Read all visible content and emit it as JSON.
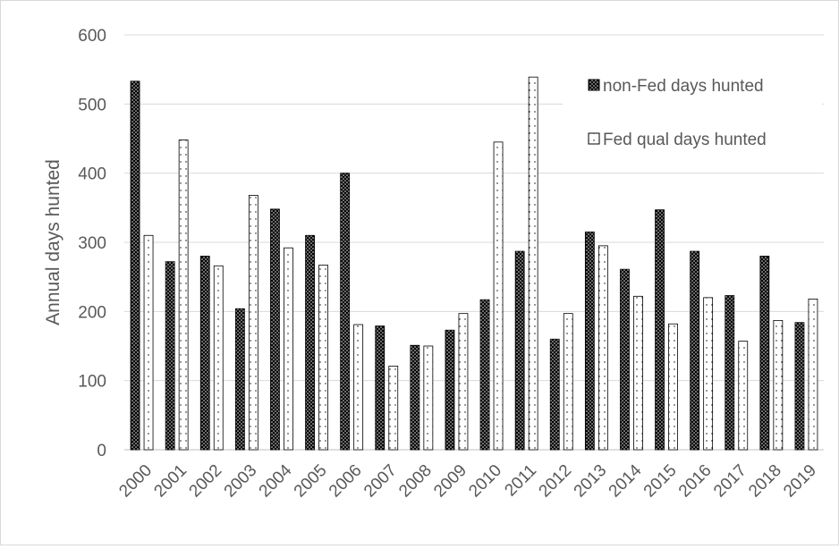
{
  "chart_data": {
    "type": "bar",
    "title": "",
    "xlabel": "",
    "ylabel": "Annual days hunted",
    "ylim": [
      0,
      600
    ],
    "yticks": [
      0,
      100,
      200,
      300,
      400,
      500,
      600
    ],
    "grid": true,
    "legend_position": "top-right",
    "categories": [
      "2000",
      "2001",
      "2002",
      "2003",
      "2004",
      "2005",
      "2006",
      "2007",
      "2008",
      "2009",
      "2010",
      "2011",
      "2012",
      "2013",
      "2014",
      "2015",
      "2016",
      "2017",
      "2018",
      "2019"
    ],
    "series": [
      {
        "name": "non-Fed days hunted",
        "pattern": "dark-dotted",
        "color": "#000000",
        "values": [
          533,
          272,
          280,
          204,
          348,
          310,
          400,
          179,
          151,
          173,
          217,
          287,
          160,
          315,
          261,
          347,
          287,
          223,
          280,
          184
        ]
      },
      {
        "name": "Fed qual days hunted",
        "pattern": "light-dotted",
        "color": "#ffffff",
        "values": [
          310,
          448,
          266,
          368,
          292,
          267,
          181,
          121,
          150,
          197,
          445,
          539,
          197,
          295,
          222,
          182,
          220,
          157,
          187,
          218
        ]
      }
    ]
  }
}
